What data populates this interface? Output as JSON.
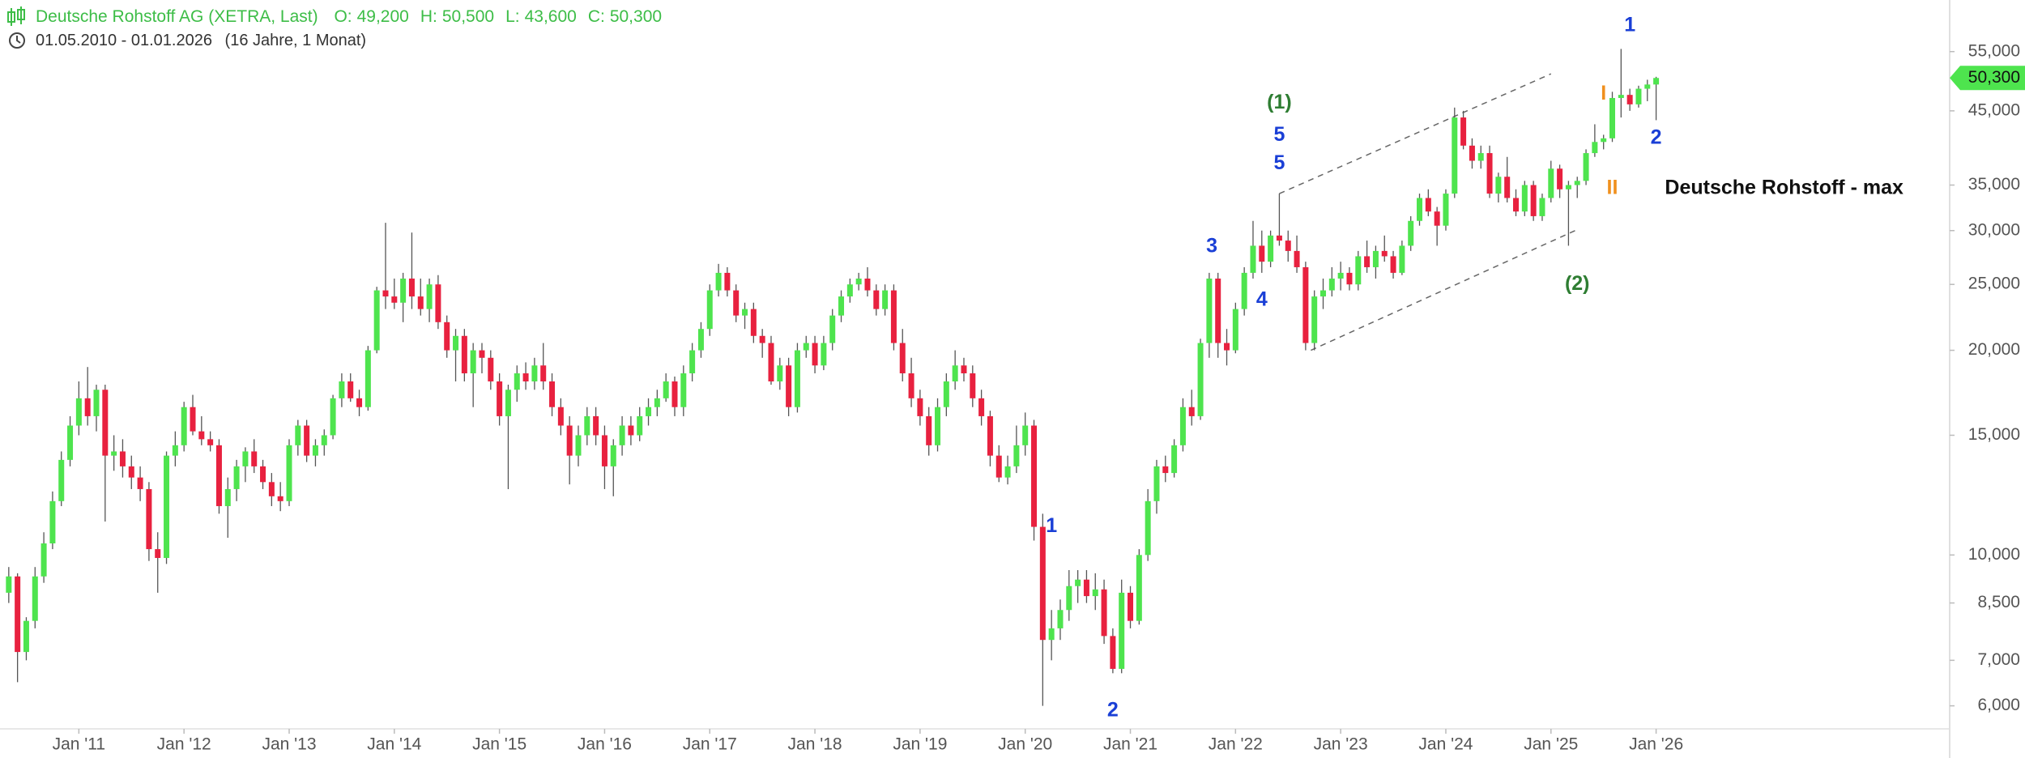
{
  "chart_data": {
    "type": "candlestick",
    "title": "Deutsche Rohstoff AG (XETRA, Last)",
    "ohlc_legend": {
      "keys": [
        "O:",
        "H:",
        "L:",
        "C:"
      ],
      "values": [
        49200,
        50500,
        43600,
        50300
      ],
      "value_labels": [
        "49,200",
        "50,500",
        "43,600",
        "50,300"
      ]
    },
    "date_range": "01.05.2010 - 01.01.2026",
    "duration": "(16 Jahre, 1 Monat)",
    "log_scale": true,
    "up_color": "#4ee44e",
    "down_color": "#e8213f",
    "wick_color": "#555555",
    "xlim": [
      -1,
      221.5
    ],
    "xticks": [
      {
        "value": 8,
        "label": "Jan '11"
      },
      {
        "value": 20,
        "label": "Jan '12"
      },
      {
        "value": 32,
        "label": "Jan '13"
      },
      {
        "value": 44,
        "label": "Jan '14"
      },
      {
        "value": 56,
        "label": "Jan '15"
      },
      {
        "value": 68,
        "label": "Jan '16"
      },
      {
        "value": 80,
        "label": "Jan '17"
      },
      {
        "value": 92,
        "label": "Jan '18"
      },
      {
        "value": 104,
        "label": "Jan '19"
      },
      {
        "value": 116,
        "label": "Jan '20"
      },
      {
        "value": 128,
        "label": "Jan '21"
      },
      {
        "value": 140,
        "label": "Jan '22"
      },
      {
        "value": 152,
        "label": "Jan '23"
      },
      {
        "value": 164,
        "label": "Jan '24"
      },
      {
        "value": 176,
        "label": "Jan '25"
      },
      {
        "value": 188,
        "label": "Jan '26"
      }
    ],
    "ylim": [
      5550,
      65500
    ],
    "yticks": [
      {
        "value": 6000,
        "label": "6,000"
      },
      {
        "value": 7000,
        "label": "7,000"
      },
      {
        "value": 8500,
        "label": "8,500"
      },
      {
        "value": 10000,
        "label": "10,000"
      },
      {
        "value": 15000,
        "label": "15,000"
      },
      {
        "value": 20000,
        "label": "20,000"
      },
      {
        "value": 25000,
        "label": "25,000"
      },
      {
        "value": 30000,
        "label": "30,000"
      },
      {
        "value": 35000,
        "label": "35,000"
      },
      {
        "value": 45000,
        "label": "45,000"
      },
      {
        "value": 55000,
        "label": "55,000"
      }
    ],
    "last_price": 50300,
    "last_price_label": "50,300",
    "last_price_color": "#4ee44e",
    "candles": [
      [
        8800,
        9600,
        8500,
        9300
      ],
      [
        9300,
        9400,
        6500,
        7200
      ],
      [
        7200,
        8100,
        7000,
        8000
      ],
      [
        8000,
        9600,
        7800,
        9300
      ],
      [
        9300,
        10800,
        9100,
        10400
      ],
      [
        10400,
        12400,
        10200,
        12000
      ],
      [
        12000,
        14200,
        11800,
        13800
      ],
      [
        13800,
        16000,
        13500,
        15500
      ],
      [
        15500,
        18000,
        15000,
        17000
      ],
      [
        17000,
        18900,
        15500,
        16000
      ],
      [
        16000,
        17800,
        15200,
        17500
      ],
      [
        17500,
        17800,
        11200,
        14000
      ],
      [
        14000,
        15000,
        13300,
        14200
      ],
      [
        14200,
        14800,
        13000,
        13500
      ],
      [
        13500,
        14000,
        12500,
        13000
      ],
      [
        13000,
        13500,
        12000,
        12500
      ],
      [
        12500,
        12800,
        9800,
        10200
      ],
      [
        10200,
        10800,
        8800,
        9900
      ],
      [
        9900,
        14200,
        9700,
        14000
      ],
      [
        14000,
        15200,
        13500,
        14500
      ],
      [
        14500,
        16800,
        14200,
        16500
      ],
      [
        16500,
        17200,
        15000,
        15200
      ],
      [
        15200,
        16000,
        14500,
        14800
      ],
      [
        14800,
        15200,
        14200,
        14500
      ],
      [
        14500,
        14800,
        11500,
        11800
      ],
      [
        11800,
        13000,
        10600,
        12500
      ],
      [
        12500,
        13800,
        12000,
        13500
      ],
      [
        13500,
        14400,
        12800,
        14200
      ],
      [
        14200,
        14800,
        13200,
        13500
      ],
      [
        13500,
        13800,
        12500,
        12800
      ],
      [
        12800,
        13200,
        11800,
        12200
      ],
      [
        12200,
        12800,
        11600,
        12000
      ],
      [
        12000,
        14800,
        11800,
        14500
      ],
      [
        14500,
        15800,
        14000,
        15500
      ],
      [
        15500,
        15800,
        13700,
        14000
      ],
      [
        14000,
        14800,
        13500,
        14500
      ],
      [
        14500,
        15300,
        14000,
        15000
      ],
      [
        15000,
        17200,
        14800,
        17000
      ],
      [
        17000,
        18500,
        16500,
        18000
      ],
      [
        18000,
        18500,
        16800,
        17000
      ],
      [
        17000,
        17500,
        16000,
        16500
      ],
      [
        16500,
        20300,
        16300,
        20000
      ],
      [
        20000,
        24800,
        19800,
        24500
      ],
      [
        24500,
        30800,
        23000,
        24000
      ],
      [
        24000,
        25500,
        23000,
        23500
      ],
      [
        23500,
        26000,
        22000,
        25500
      ],
      [
        25500,
        29800,
        23000,
        24000
      ],
      [
        24000,
        25500,
        22500,
        23000
      ],
      [
        23000,
        25500,
        22000,
        25000
      ],
      [
        25000,
        25800,
        21500,
        22000
      ],
      [
        22000,
        22500,
        19500,
        20000
      ],
      [
        20000,
        21500,
        18000,
        21000
      ],
      [
        21000,
        21500,
        18000,
        18500
      ],
      [
        18500,
        20500,
        16500,
        20000
      ],
      [
        20000,
        20500,
        18500,
        19500
      ],
      [
        19500,
        20000,
        17500,
        18000
      ],
      [
        18000,
        18500,
        15500,
        16000
      ],
      [
        16000,
        17800,
        12500,
        17500
      ],
      [
        17500,
        19000,
        16800,
        18500
      ],
      [
        18500,
        19200,
        17500,
        18000
      ],
      [
        18000,
        19500,
        17500,
        19000
      ],
      [
        19000,
        20500,
        17500,
        18000
      ],
      [
        18000,
        18500,
        16000,
        16500
      ],
      [
        16500,
        17000,
        15000,
        15500
      ],
      [
        15500,
        16000,
        12700,
        14000
      ],
      [
        14000,
        15500,
        13500,
        15000
      ],
      [
        15000,
        16500,
        14500,
        16000
      ],
      [
        16000,
        16500,
        14500,
        15000
      ],
      [
        15000,
        15500,
        12500,
        13500
      ],
      [
        13500,
        14800,
        12200,
        14500
      ],
      [
        14500,
        16000,
        14000,
        15500
      ],
      [
        15500,
        16000,
        14500,
        15000
      ],
      [
        15000,
        16500,
        14700,
        16000
      ],
      [
        16000,
        17000,
        15500,
        16500
      ],
      [
        16500,
        17500,
        16000,
        17000
      ],
      [
        17000,
        18500,
        16800,
        18000
      ],
      [
        18000,
        18300,
        16000,
        16500
      ],
      [
        16500,
        19000,
        16000,
        18500
      ],
      [
        18500,
        20500,
        18000,
        20000
      ],
      [
        20000,
        22000,
        19500,
        21500
      ],
      [
        21500,
        25000,
        21000,
        24500
      ],
      [
        24500,
        26800,
        24000,
        26000
      ],
      [
        26000,
        26500,
        24000,
        24500
      ],
      [
        24500,
        25000,
        22000,
        22500
      ],
      [
        22500,
        23500,
        21500,
        23000
      ],
      [
        23000,
        23500,
        20500,
        21000
      ],
      [
        21000,
        21500,
        19500,
        20500
      ],
      [
        20500,
        21000,
        17800,
        18000
      ],
      [
        18000,
        19500,
        17500,
        19000
      ],
      [
        19000,
        19500,
        16000,
        16500
      ],
      [
        16500,
        20500,
        16200,
        20000
      ],
      [
        20000,
        21000,
        19500,
        20500
      ],
      [
        20500,
        21000,
        18500,
        19000
      ],
      [
        19000,
        21000,
        18700,
        20500
      ],
      [
        20500,
        23000,
        20000,
        22500
      ],
      [
        22500,
        24500,
        22000,
        24000
      ],
      [
        24000,
        25500,
        23500,
        25000
      ],
      [
        25000,
        26000,
        24500,
        25500
      ],
      [
        25500,
        26500,
        24000,
        24500
      ],
      [
        24500,
        25000,
        22500,
        23000
      ],
      [
        23000,
        25000,
        22500,
        24500
      ],
      [
        24500,
        25000,
        20000,
        20500
      ],
      [
        20500,
        21500,
        18000,
        18500
      ],
      [
        18500,
        19500,
        16500,
        17000
      ],
      [
        17000,
        17500,
        15500,
        16000
      ],
      [
        16000,
        16500,
        14000,
        14500
      ],
      [
        14500,
        17000,
        14200,
        16500
      ],
      [
        16500,
        18500,
        16000,
        18000
      ],
      [
        18000,
        20000,
        17500,
        19000
      ],
      [
        19000,
        19500,
        18000,
        18500
      ],
      [
        18500,
        19000,
        16500,
        17000
      ],
      [
        17000,
        17500,
        15500,
        16000
      ],
      [
        16000,
        16300,
        13500,
        14000
      ],
      [
        14000,
        14500,
        12800,
        13000
      ],
      [
        13000,
        14000,
        12700,
        13500
      ],
      [
        13500,
        15500,
        13200,
        14500
      ],
      [
        14500,
        16200,
        14000,
        15500
      ],
      [
        15500,
        15800,
        10500,
        11000
      ],
      [
        11000,
        11500,
        6000,
        7500
      ],
      [
        7500,
        8300,
        7000,
        7800
      ],
      [
        7800,
        8600,
        7500,
        8300
      ],
      [
        8300,
        9500,
        8000,
        9000
      ],
      [
        9000,
        9500,
        8500,
        9200
      ],
      [
        9200,
        9500,
        8500,
        8700
      ],
      [
        8700,
        9400,
        8300,
        8900
      ],
      [
        8900,
        9200,
        7400,
        7600
      ],
      [
        7600,
        7800,
        6700,
        6800
      ],
      [
        6800,
        9200,
        6700,
        8800
      ],
      [
        8800,
        9000,
        7800,
        8000
      ],
      [
        8000,
        10200,
        7900,
        10000
      ],
      [
        10000,
        12500,
        9800,
        12000
      ],
      [
        12000,
        13800,
        11500,
        13500
      ],
      [
        13500,
        14000,
        12800,
        13200
      ],
      [
        13200,
        14800,
        13000,
        14500
      ],
      [
        14500,
        17000,
        14200,
        16500
      ],
      [
        16500,
        17500,
        15500,
        16000
      ],
      [
        16000,
        20800,
        15800,
        20500
      ],
      [
        20500,
        26000,
        19500,
        25500
      ],
      [
        25500,
        26000,
        19500,
        20500
      ],
      [
        20500,
        21500,
        19000,
        20000
      ],
      [
        20000,
        23500,
        19800,
        23000
      ],
      [
        23000,
        26500,
        22500,
        26000
      ],
      [
        26000,
        31000,
        25500,
        28500
      ],
      [
        28500,
        30000,
        26000,
        27000
      ],
      [
        27000,
        30000,
        26500,
        29500
      ],
      [
        29500,
        34000,
        28500,
        29000
      ],
      [
        29000,
        30000,
        27000,
        28000
      ],
      [
        28000,
        29500,
        26000,
        26500
      ],
      [
        26500,
        27000,
        20000,
        20500
      ],
      [
        20500,
        24500,
        20000,
        24000
      ],
      [
        24000,
        25500,
        23000,
        24500
      ],
      [
        24500,
        26500,
        24000,
        25500
      ],
      [
        25500,
        27000,
        24500,
        26000
      ],
      [
        26000,
        26500,
        24500,
        25000
      ],
      [
        25000,
        28000,
        24500,
        27500
      ],
      [
        27500,
        29000,
        26000,
        26500
      ],
      [
        26500,
        28500,
        25500,
        28000
      ],
      [
        28000,
        29500,
        27000,
        27500
      ],
      [
        27500,
        28000,
        25500,
        26000
      ],
      [
        26000,
        29000,
        25800,
        28500
      ],
      [
        28500,
        31500,
        28000,
        31000
      ],
      [
        31000,
        34000,
        30500,
        33500
      ],
      [
        33500,
        34500,
        31500,
        32000
      ],
      [
        32000,
        32500,
        28500,
        30500
      ],
      [
        30500,
        34500,
        30000,
        34000
      ],
      [
        34000,
        45500,
        33500,
        44000
      ],
      [
        44000,
        45000,
        39500,
        40000
      ],
      [
        40000,
        41000,
        37000,
        38000
      ],
      [
        38000,
        40000,
        37000,
        39000
      ],
      [
        39000,
        40000,
        33500,
        34000
      ],
      [
        34000,
        36500,
        33000,
        36000
      ],
      [
        36000,
        38500,
        33000,
        33500
      ],
      [
        33500,
        34500,
        31500,
        32000
      ],
      [
        32000,
        35500,
        31500,
        35000
      ],
      [
        35000,
        35500,
        31000,
        31500
      ],
      [
        31500,
        34000,
        31000,
        33500
      ],
      [
        33500,
        38000,
        33000,
        37000
      ],
      [
        37000,
        37500,
        33500,
        34500
      ],
      [
        34500,
        35500,
        28500,
        35000
      ],
      [
        35000,
        36000,
        33500,
        35500
      ],
      [
        35500,
        39500,
        35000,
        39000
      ],
      [
        39000,
        43000,
        38500,
        40500
      ],
      [
        40500,
        41500,
        39500,
        41000
      ],
      [
        41000,
        48000,
        40500,
        47000
      ],
      [
        47000,
        55500,
        44000,
        47500
      ],
      [
        47500,
        48500,
        45000,
        46000
      ],
      [
        46000,
        49000,
        45500,
        48500
      ],
      [
        48500,
        50000,
        46500,
        49200
      ],
      [
        49200,
        50500,
        43600,
        50300
      ]
    ],
    "annotations": [
      {
        "text": "(1)",
        "x": 145,
        "y": 46200,
        "color": "#2e7d32"
      },
      {
        "text": "5",
        "x": 145,
        "y": 41400,
        "color": "#1a3fd6"
      },
      {
        "text": "5",
        "x": 145,
        "y": 37600,
        "color": "#1a3fd6"
      },
      {
        "text": "3",
        "x": 137.3,
        "y": 28400,
        "color": "#1a3fd6"
      },
      {
        "text": "4",
        "x": 143,
        "y": 23700,
        "color": "#1a3fd6"
      },
      {
        "text": "1",
        "x": 185,
        "y": 60000,
        "color": "#1a3fd6"
      },
      {
        "text": "2",
        "x": 188,
        "y": 41000,
        "color": "#1a3fd6"
      },
      {
        "text": "I",
        "x": 182,
        "y": 47600,
        "color": "#f0901e"
      },
      {
        "text": "II",
        "x": 183,
        "y": 34600,
        "color": "#f0901e"
      },
      {
        "text": "(2)",
        "x": 179,
        "y": 25000,
        "color": "#2e7d32"
      },
      {
        "text": "1",
        "x": 119,
        "y": 11000,
        "color": "#1a3fd6"
      },
      {
        "text": "2",
        "x": 126,
        "y": 5900,
        "color": "#1a3fd6"
      }
    ],
    "note": {
      "text": "Deutsche Rohstoff - max",
      "x": 189,
      "y": 34600
    },
    "channel": [
      [
        145,
        34000,
        176,
        51000
      ],
      [
        148.6,
        20000,
        179,
        30100
      ]
    ]
  }
}
